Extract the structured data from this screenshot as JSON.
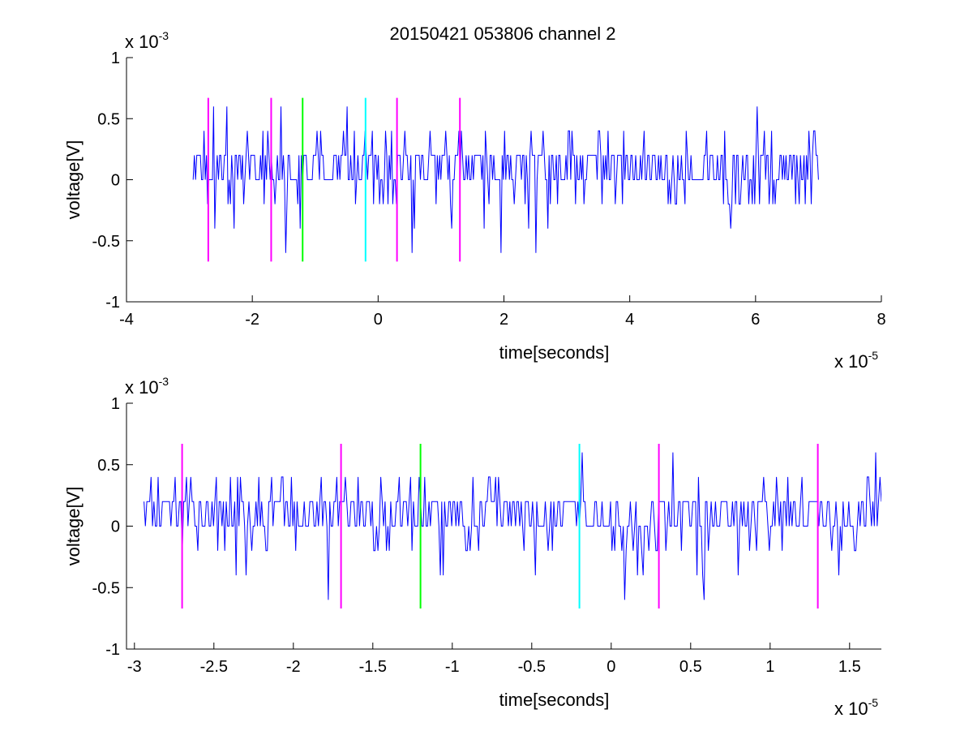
{
  "title": "20150421 053806 channel 2",
  "chart_data": [
    {
      "type": "line",
      "title": "20150421 053806 channel 2",
      "xlabel": "time[seconds]",
      "ylabel": "voltage[V]",
      "x_exponent_label": "x 10",
      "x_exponent": "-5",
      "y_exponent_label": "x 10",
      "y_exponent": "-3",
      "xlim": [
        -4,
        8
      ],
      "ylim": [
        -1,
        1
      ],
      "xticks": [
        -4,
        -2,
        0,
        2,
        4,
        6,
        8
      ],
      "xtick_labels": [
        "-4",
        "-2",
        "0",
        "2",
        "4",
        "6",
        "8"
      ],
      "yticks": [
        -1,
        -0.5,
        0,
        0.5,
        1
      ],
      "ytick_labels": [
        "-1",
        "-0.5",
        "0",
        "0.5",
        "1"
      ],
      "grid": false,
      "series": [
        {
          "color": "#0000ff",
          "x_range": [
            -2.94,
            7.0
          ],
          "levels": [
            -0.6,
            -0.4,
            -0.2,
            0,
            0.2,
            0.4,
            0.6
          ],
          "seed": 20150421
        }
      ],
      "markers": [
        {
          "x": -2.7,
          "color": "#ff00ff",
          "ymin": -0.67,
          "ymax": 0.67
        },
        {
          "x": -1.7,
          "color": "#ff00ff",
          "ymin": -0.67,
          "ymax": 0.67
        },
        {
          "x": -1.2,
          "color": "#00ff00",
          "ymin": -0.67,
          "ymax": 0.67
        },
        {
          "x": -0.2,
          "color": "#00ffff",
          "ymin": -0.67,
          "ymax": 0.67
        },
        {
          "x": 0.3,
          "color": "#ff00ff",
          "ymin": -0.67,
          "ymax": 0.67
        },
        {
          "x": 1.3,
          "color": "#ff00ff",
          "ymin": -0.67,
          "ymax": 0.67
        }
      ]
    },
    {
      "type": "line",
      "xlabel": "time[seconds]",
      "ylabel": "voltage[V]",
      "x_exponent_label": "x 10",
      "x_exponent": "-5",
      "y_exponent_label": "x 10",
      "y_exponent": "-3",
      "xlim": [
        -3.05,
        1.7
      ],
      "ylim": [
        -1,
        1
      ],
      "xticks": [
        -3,
        -2.5,
        -2,
        -1.5,
        -1,
        -0.5,
        0,
        0.5,
        1,
        1.5
      ],
      "xtick_labels": [
        "-3",
        "-2.5",
        "-2",
        "-1.5",
        "-1",
        "-0.5",
        "0",
        "0.5",
        "1",
        "1.5"
      ],
      "yticks": [
        -1,
        -0.5,
        0,
        0.5,
        1
      ],
      "ytick_labels": [
        "-1",
        "-0.5",
        "0",
        "0.5",
        "1"
      ],
      "grid": false,
      "series": [
        {
          "color": "#0000ff",
          "x_range": [
            -2.94,
            1.7
          ],
          "levels": [
            -0.6,
            -0.4,
            -0.2,
            0,
            0.2,
            0.4,
            0.6
          ],
          "seed": 53806
        }
      ],
      "markers": [
        {
          "x": -2.7,
          "color": "#ff00ff",
          "ymin": -0.67,
          "ymax": 0.67
        },
        {
          "x": -1.7,
          "color": "#ff00ff",
          "ymin": -0.67,
          "ymax": 0.67
        },
        {
          "x": -1.2,
          "color": "#00ff00",
          "ymin": -0.67,
          "ymax": 0.67
        },
        {
          "x": -0.2,
          "color": "#00ffff",
          "ymin": -0.67,
          "ymax": 0.67
        },
        {
          "x": 0.3,
          "color": "#ff00ff",
          "ymin": -0.67,
          "ymax": 0.67
        },
        {
          "x": 1.3,
          "color": "#ff00ff",
          "ymin": -0.67,
          "ymax": 0.67
        }
      ]
    }
  ]
}
